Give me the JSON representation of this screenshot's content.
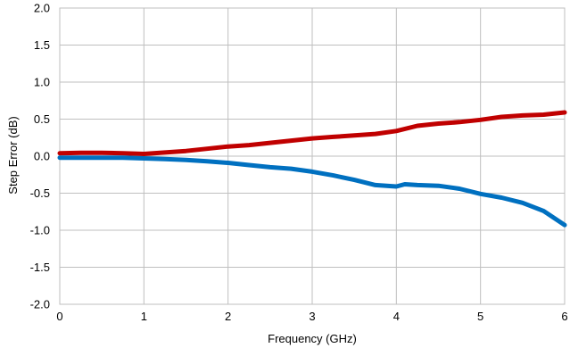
{
  "chart_data": {
    "type": "line",
    "title": "",
    "xlabel": "Frequency (GHz)",
    "ylabel": "Step Error (dB)",
    "xlim": [
      0,
      6
    ],
    "ylim": [
      -2.0,
      2.0
    ],
    "xticks": [
      0,
      1,
      2,
      3,
      4,
      5,
      6
    ],
    "yticks": [
      2.0,
      1.5,
      1.0,
      0.5,
      0.0,
      -0.5,
      -1.0,
      -1.5,
      -2.0
    ],
    "xtick_labels": [
      "0",
      "1",
      "2",
      "3",
      "4",
      "5",
      "6"
    ],
    "ytick_labels": [
      "2.0",
      "1.5",
      "1.0",
      "0.5",
      "0.0",
      "-0.5",
      "-1.0",
      "-1.5",
      "-2.0"
    ],
    "grid": true,
    "legend": "none",
    "series": [
      {
        "color": "#c00000",
        "x": [
          0,
          0.25,
          0.5,
          0.75,
          1.0,
          1.25,
          1.5,
          1.75,
          2.0,
          2.25,
          2.5,
          2.75,
          3.0,
          3.25,
          3.5,
          3.75,
          4.0,
          4.25,
          4.5,
          4.75,
          5.0,
          5.25,
          5.5,
          5.75,
          6.0
        ],
        "y": [
          0.04,
          0.045,
          0.045,
          0.04,
          0.03,
          0.05,
          0.07,
          0.1,
          0.13,
          0.15,
          0.18,
          0.21,
          0.24,
          0.26,
          0.28,
          0.3,
          0.34,
          0.41,
          0.44,
          0.46,
          0.49,
          0.53,
          0.55,
          0.56,
          0.59
        ]
      },
      {
        "color": "#0070c0",
        "x": [
          0,
          0.25,
          0.5,
          0.75,
          1.0,
          1.25,
          1.5,
          1.75,
          2.0,
          2.25,
          2.5,
          2.75,
          3.0,
          3.25,
          3.5,
          3.75,
          4.0,
          4.1,
          4.25,
          4.5,
          4.75,
          5.0,
          5.25,
          5.5,
          5.75,
          6.0
        ],
        "y": [
          -0.02,
          -0.02,
          -0.02,
          -0.02,
          -0.03,
          -0.04,
          -0.05,
          -0.07,
          -0.09,
          -0.12,
          -0.15,
          -0.17,
          -0.21,
          -0.26,
          -0.32,
          -0.39,
          -0.41,
          -0.38,
          -0.39,
          -0.4,
          -0.44,
          -0.51,
          -0.56,
          -0.63,
          -0.74,
          -0.93
        ]
      }
    ]
  }
}
